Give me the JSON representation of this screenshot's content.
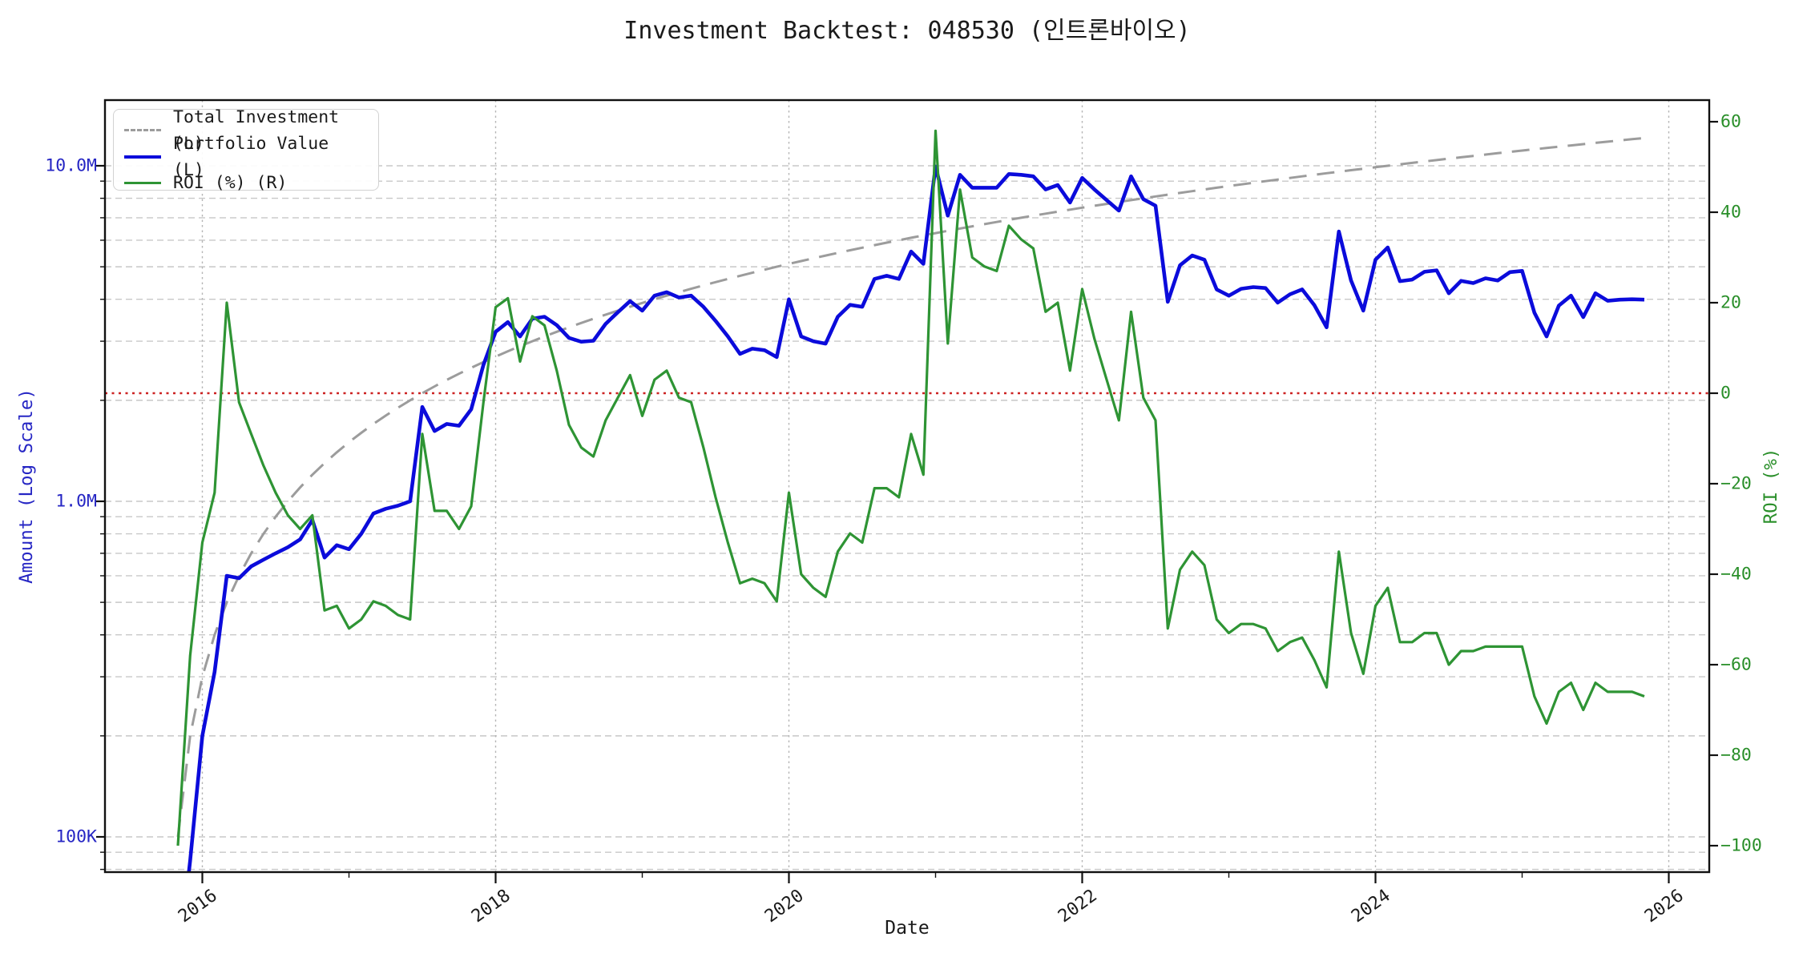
{
  "title": "Investment Backtest: 048530 (인트론바이오)",
  "legend": {
    "items": [
      {
        "label": "Total Investment (L)",
        "color": "#9c9c9c",
        "style": "dashed"
      },
      {
        "label": "Portfolio Value (L)",
        "color": "#0b0bdb",
        "style": "solid"
      },
      {
        "label": "ROI (%) (R)",
        "color": "#2e9434",
        "style": "solid"
      }
    ]
  },
  "axes": {
    "left": {
      "label": "Amount (Log Scale)",
      "text_color": "#2626c4",
      "scale": "log",
      "tick_labels": [
        "100K",
        "1.0M",
        "10.0M"
      ],
      "tick_values": [
        0.1,
        1.0,
        10.0
      ],
      "unit": "M",
      "minor_gridlines": [
        0.08,
        0.09,
        0.1,
        0.2,
        0.3,
        0.4,
        0.5,
        0.6,
        0.7,
        0.8,
        0.9,
        1,
        2,
        3,
        4,
        5,
        6,
        7,
        8,
        9,
        10
      ],
      "ylim": [
        0.078,
        15.8
      ]
    },
    "right": {
      "label": "ROI (%)",
      "text_color": "#2a8f2a",
      "tick_values": [
        60,
        40,
        20,
        0,
        -20,
        -40,
        -60,
        -80,
        -100
      ],
      "ylim": [
        -107,
        63
      ]
    },
    "x": {
      "label": "Date",
      "tick_labels": [
        "2016",
        "2018",
        "2020",
        "2022",
        "2024",
        "2026"
      ],
      "tick_years": [
        2016,
        2018,
        2020,
        2022,
        2024,
        2026
      ],
      "minor_years": [
        2017,
        2019,
        2021,
        2023,
        2025
      ]
    }
  },
  "chart_data": {
    "type": "line",
    "title": "Investment Backtest: 048530 (인트론바이오)",
    "xlabel": "Date",
    "ylabel_left": "Amount (Log Scale)",
    "ylabel_right": "ROI (%)",
    "start_month": "2015-11",
    "end_month": "2025-11",
    "months_per_point": 1,
    "grid": true,
    "legend_position": "upper left",
    "zero_line": {
      "axis": "right",
      "value": 0,
      "color": "#cc2222",
      "style": "dotted"
    },
    "series": [
      {
        "name": "Total Investment (L)",
        "axis": "left",
        "unit": "M KRW",
        "color": "#9c9c9c",
        "dash": "dashed",
        "rule": {
          "start": 0.1,
          "step_per_month": 0.1,
          "note": "monthly contribution, 0.1M to 12.1M"
        }
      },
      {
        "name": "Portfolio Value (L)",
        "axis": "left",
        "unit": "M KRW",
        "color": "#0b0bdb",
        "dash": "solid",
        "values": [
          0.04,
          0.085,
          0.2,
          0.31,
          0.6,
          0.59,
          0.64,
          0.67,
          0.7,
          0.73,
          0.77,
          0.88,
          0.68,
          0.74,
          0.72,
          0.8,
          0.92,
          0.95,
          0.97,
          1.0,
          1.91,
          1.62,
          1.7,
          1.68,
          1.88,
          2.55,
          3.2,
          3.42,
          3.1,
          3.5,
          3.55,
          3.35,
          3.07,
          2.99,
          3.01,
          3.38,
          3.66,
          3.95,
          3.7,
          4.1,
          4.2,
          4.05,
          4.1,
          3.8,
          3.45,
          3.1,
          2.75,
          2.85,
          2.82,
          2.69,
          4.0,
          3.1,
          3.0,
          2.95,
          3.55,
          3.85,
          3.8,
          4.6,
          4.7,
          4.6,
          5.55,
          5.1,
          9.95,
          7.1,
          9.4,
          8.6,
          8.6,
          8.6,
          9.45,
          9.4,
          9.3,
          8.5,
          8.76,
          7.77,
          9.2,
          8.5,
          7.9,
          7.35,
          9.3,
          7.95,
          7.6,
          3.93,
          5.05,
          5.4,
          5.25,
          4.28,
          4.1,
          4.3,
          4.35,
          4.32,
          3.91,
          4.14,
          4.28,
          3.84,
          3.3,
          6.37,
          4.55,
          3.7,
          5.25,
          5.71,
          4.53,
          4.58,
          4.83,
          4.88,
          4.17,
          4.54,
          4.47,
          4.62,
          4.55,
          4.82,
          4.86,
          3.65,
          3.1,
          3.83,
          4.1,
          3.54,
          4.17,
          3.96,
          3.99,
          4.0,
          3.99
        ]
      },
      {
        "name": "ROI (%) (R)",
        "axis": "right",
        "unit": "%",
        "color": "#2e9434",
        "dash": "solid",
        "values": [
          -100,
          -58,
          -33,
          -22,
          20,
          -2,
          -9,
          -16,
          -22,
          -27,
          -30,
          -27,
          -48,
          -47,
          -52,
          -50,
          -46,
          -47,
          -49,
          -50,
          -9,
          -26,
          -26,
          -30,
          -25,
          -2,
          19,
          21,
          7,
          17,
          15,
          5,
          -7,
          -12,
          -14,
          -6,
          -1,
          4,
          -5,
          3,
          5,
          -1,
          -2,
          -12,
          -23,
          -33,
          -42,
          -41,
          -42,
          -46,
          -22,
          -40,
          -43,
          -45,
          -35,
          -31,
          -33,
          -21,
          -21,
          -23,
          -9,
          -18,
          58,
          11,
          45,
          30,
          28,
          27,
          37,
          34,
          32,
          18,
          20,
          5,
          23,
          12,
          3,
          -6,
          18,
          -1,
          -6,
          -52,
          -39,
          -35,
          -38,
          -50,
          -53,
          -51,
          -51,
          -52,
          -57,
          -55,
          -54,
          -59,
          -65,
          -35,
          -53,
          -62,
          -47,
          -43,
          -55,
          -55,
          -53,
          -53,
          -60,
          -57,
          -57,
          -56,
          -56,
          -56,
          -56,
          -67,
          -73,
          -66,
          -64,
          -70,
          -64,
          -66,
          -66,
          -66,
          -67
        ]
      }
    ]
  },
  "colors": {
    "background": "#ffffff",
    "spine": "#111111",
    "grid_h": "#c8c8c8",
    "grid_v": "#b5b5b5",
    "zero_line": "#cc2222",
    "total_investment": "#9c9c9c",
    "portfolio": "#0b0bdb",
    "roi": "#2e9434",
    "left_axis_text": "#2626c4",
    "right_axis_text": "#2a8f2a"
  }
}
